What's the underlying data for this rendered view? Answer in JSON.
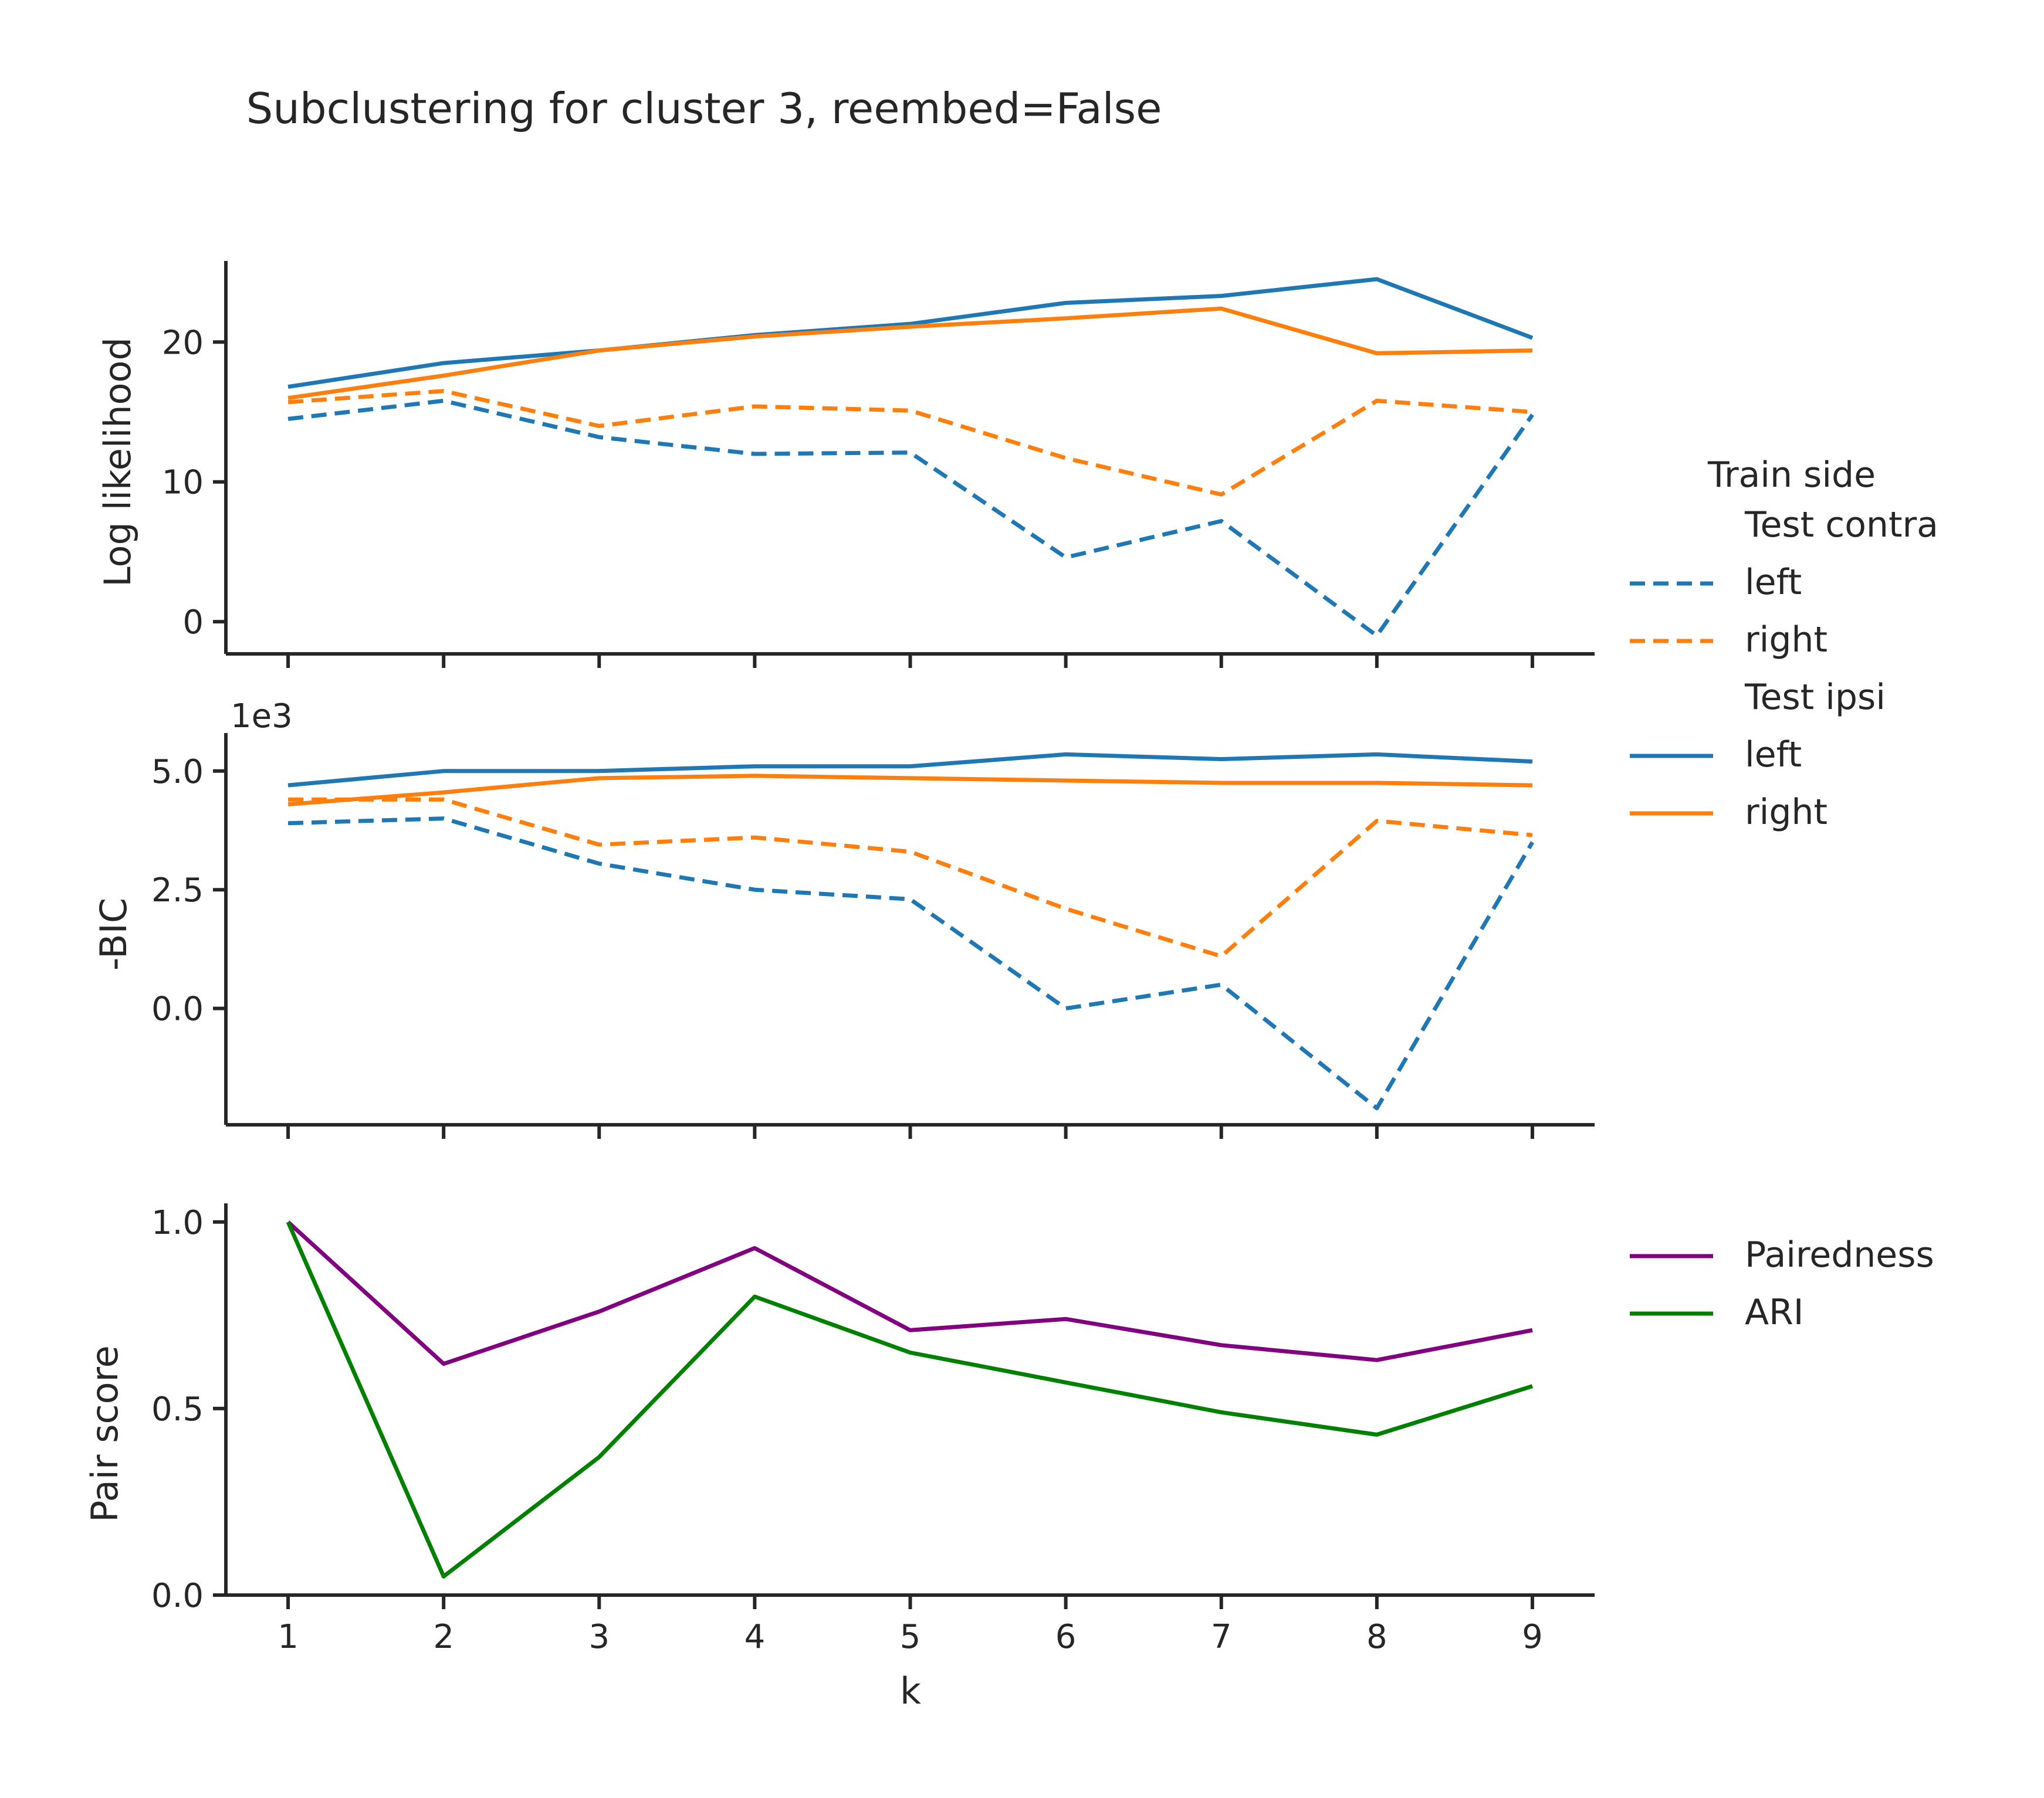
{
  "title": "Subclustering for cluster 3, reembed=False",
  "colors": {
    "left": "#1f77b4",
    "right": "#ff7f0e",
    "paired": "#800080",
    "ari": "#008000"
  },
  "x_ticks": [
    "1",
    "2",
    "3",
    "4",
    "5",
    "6",
    "7",
    "8",
    "9"
  ],
  "xlabel": "k",
  "legends": {
    "top": {
      "title": "Train side",
      "entries": [
        {
          "label": "Test contra",
          "header": true
        },
        {
          "label": "left",
          "color": "left",
          "dash": true
        },
        {
          "label": "right",
          "color": "right",
          "dash": true
        },
        {
          "label": "Test ipsi",
          "header": true
        },
        {
          "label": "left",
          "color": "left",
          "dash": false
        },
        {
          "label": "right",
          "color": "right",
          "dash": false
        }
      ]
    },
    "bottom": {
      "entries": [
        {
          "label": "Pairedness",
          "color": "paired"
        },
        {
          "label": "ARI",
          "color": "ari"
        }
      ]
    }
  },
  "chart_data": [
    {
      "type": "line",
      "ylabel": "Log likelihood",
      "ylim": [
        -2.3,
        25.8
      ],
      "y_ticks": [
        0,
        10,
        20
      ],
      "y_tick_labels": [
        "0",
        "10",
        "20"
      ],
      "x": [
        1,
        2,
        3,
        4,
        5,
        6,
        7,
        8,
        9
      ],
      "series": [
        {
          "name": "left",
          "group": "Test contra",
          "color": "left",
          "dash": true,
          "values": [
            14.5,
            15.8,
            13.2,
            12.0,
            12.1,
            4.6,
            7.2,
            -1.0,
            14.8
          ]
        },
        {
          "name": "right",
          "group": "Test contra",
          "color": "right",
          "dash": true,
          "values": [
            15.7,
            16.5,
            14.0,
            15.4,
            15.1,
            11.7,
            9.1,
            15.8,
            15.0
          ]
        },
        {
          "name": "left",
          "group": "Test ipsi",
          "color": "left",
          "dash": false,
          "values": [
            16.8,
            18.5,
            19.4,
            20.5,
            21.3,
            22.8,
            23.3,
            24.5,
            20.3
          ]
        },
        {
          "name": "right",
          "group": "Test ipsi",
          "color": "right",
          "dash": false,
          "values": [
            16.0,
            17.6,
            19.4,
            20.4,
            21.1,
            21.7,
            22.4,
            19.2,
            19.4
          ]
        }
      ]
    },
    {
      "type": "line",
      "ylabel": "-BIC",
      "offset_label": "1e3",
      "ylim": [
        -2.45,
        5.8
      ],
      "y_ticks": [
        0,
        2.5,
        5.0
      ],
      "y_tick_labels": [
        "0.0",
        "2.5",
        "5.0"
      ],
      "x": [
        1,
        2,
        3,
        4,
        5,
        6,
        7,
        8,
        9
      ],
      "series": [
        {
          "name": "left",
          "group": "Test contra",
          "color": "left",
          "dash": true,
          "values": [
            3.9,
            4.0,
            3.05,
            2.5,
            2.3,
            0.0,
            0.5,
            -2.1,
            3.5
          ]
        },
        {
          "name": "right",
          "group": "Test contra",
          "color": "right",
          "dash": true,
          "values": [
            4.4,
            4.4,
            3.45,
            3.6,
            3.3,
            2.1,
            1.1,
            3.95,
            3.65
          ]
        },
        {
          "name": "left",
          "group": "Test ipsi",
          "color": "left",
          "dash": false,
          "values": [
            4.7,
            5.0,
            5.0,
            5.1,
            5.1,
            5.35,
            5.25,
            5.35,
            5.2
          ]
        },
        {
          "name": "right",
          "group": "Test ipsi",
          "color": "right",
          "dash": false,
          "values": [
            4.3,
            4.55,
            4.85,
            4.9,
            4.85,
            4.8,
            4.75,
            4.75,
            4.7
          ]
        }
      ]
    },
    {
      "type": "line",
      "ylabel": "Pair score",
      "ylim": [
        0.0,
        1.05
      ],
      "y_ticks": [
        0,
        0.5,
        1.0
      ],
      "y_tick_labels": [
        "0.0",
        "0.5",
        "1.0"
      ],
      "x": [
        1,
        2,
        3,
        4,
        5,
        6,
        7,
        8,
        9
      ],
      "series": [
        {
          "name": "Pairedness",
          "color": "paired",
          "dash": false,
          "values": [
            1.0,
            0.62,
            0.76,
            0.93,
            0.71,
            0.74,
            0.67,
            0.63,
            0.71
          ]
        },
        {
          "name": "ARI",
          "color": "ari",
          "dash": false,
          "values": [
            1.0,
            0.05,
            0.37,
            0.8,
            0.65,
            0.57,
            0.49,
            0.43,
            0.56
          ]
        }
      ]
    }
  ]
}
